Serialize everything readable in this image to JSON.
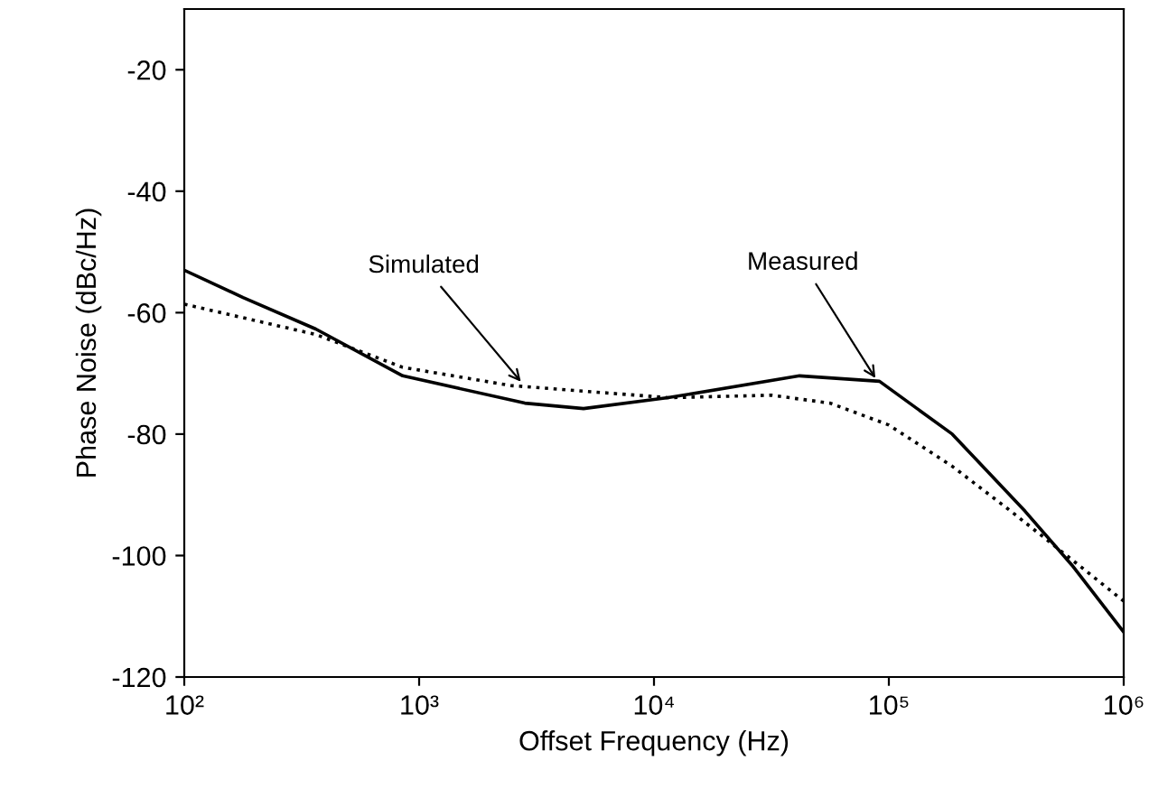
{
  "chart_data": {
    "type": "line",
    "xlabel": "Offset Frequency (Hz)",
    "ylabel": "Phase Noise (dBc/Hz)",
    "log": "x",
    "xlim": [
      100,
      1000000
    ],
    "ylim": [
      -120,
      -10
    ],
    "xticks": [
      {
        "value": 100,
        "label": "10²"
      },
      {
        "value": 1000,
        "label": "10³"
      },
      {
        "value": 10000,
        "label": "10⁴"
      },
      {
        "value": 100000,
        "label": "10⁵"
      },
      {
        "value": 1000000,
        "label": "10⁶"
      }
    ],
    "yticks": [
      -120,
      -100,
      -80,
      -60,
      -40,
      -20
    ],
    "grid": false,
    "marker": "none",
    "series": [
      {
        "color": "#000000",
        "line_style": "solid",
        "x": [
          100,
          178,
          363,
          851,
          2818,
          5012,
          11482,
          41687,
          91201,
          186209,
          380189,
          602560,
          1000000
        ],
        "values": [
          -53,
          -57.5,
          -62.7,
          -70.4,
          -74.9,
          -75.8,
          -74,
          -70.4,
          -71.3,
          -80,
          -92.7,
          -101.6,
          -112.6
        ]
      },
      {
        "color": "#000000",
        "line_style": "dotted",
        "x": [
          100,
          363,
          851,
          2455,
          11482,
          31623,
          56234,
          100000,
          186209,
          331131,
          602560,
          1000000
        ],
        "values": [
          -58.6,
          -63.6,
          -69,
          -72,
          -74,
          -73.6,
          -74.9,
          -78.5,
          -85.3,
          -92.7,
          -100.7,
          -107.5
        ]
      }
    ],
    "annotations": [
      {
        "text": "Simulated",
        "x": 2800,
        "y": -72
      },
      {
        "text": "Measured",
        "x": 90000,
        "y": -71.5
      }
    ]
  }
}
